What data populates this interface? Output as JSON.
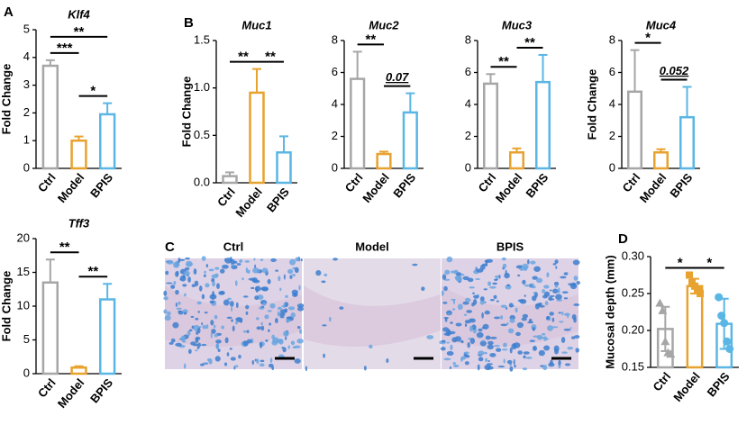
{
  "chart_data": [
    {
      "type": "bar",
      "panel": "A",
      "title": "Klf4",
      "ylabel": "Fold Change",
      "categories": [
        "Ctrl",
        "Model",
        "BPIS"
      ],
      "colors": [
        "#a6a6a6",
        "#e8a22f",
        "#5ab6e4"
      ],
      "values": [
        3.7,
        1.0,
        1.95
      ],
      "errors": [
        0.2,
        0.15,
        0.4
      ],
      "ylim": [
        0,
        5
      ],
      "yticks": [
        0,
        1,
        2,
        3,
        4,
        5
      ],
      "annotations": [
        {
          "label": "***",
          "between": [
            "Ctrl",
            "Model"
          ]
        },
        {
          "label": "*",
          "between": [
            "Model",
            "BPIS"
          ]
        },
        {
          "label": "**",
          "between": [
            "Ctrl",
            "BPIS"
          ]
        }
      ]
    },
    {
      "type": "bar",
      "title": "Tff3",
      "ylabel": "Fold Change",
      "categories": [
        "Ctrl",
        "Model",
        "BPIS"
      ],
      "colors": [
        "#a6a6a6",
        "#e8a22f",
        "#5ab6e4"
      ],
      "values": [
        13.5,
        0.9,
        11
      ],
      "errors": [
        3.4,
        0.2,
        2.3
      ],
      "ylim": [
        0,
        20
      ],
      "yticks": [
        0,
        5,
        10,
        15,
        20
      ],
      "annotations": [
        {
          "label": "**",
          "between": [
            "Ctrl",
            "Model"
          ]
        },
        {
          "label": "**",
          "between": [
            "Model",
            "BPIS"
          ]
        }
      ]
    },
    {
      "type": "bar",
      "panel": "B",
      "title": "Muc1",
      "ylabel": "Fold Change",
      "categories": [
        "Ctrl",
        "Model",
        "BPIS"
      ],
      "colors": [
        "#a6a6a6",
        "#e8a22f",
        "#5ab6e4"
      ],
      "values": [
        0.07,
        0.95,
        0.32
      ],
      "errors": [
        0.04,
        0.25,
        0.17
      ],
      "ylim": [
        0,
        1.5
      ],
      "yticks": [
        {
          "value": 0,
          "label": "0.0"
        },
        0.5,
        {
          "value": 1,
          "label": "1.0"
        },
        1.5
      ],
      "annotations": [
        {
          "label": "**",
          "between": [
            "Ctrl",
            "Model"
          ]
        },
        {
          "label": "**",
          "between": [
            "Model",
            "BPIS"
          ]
        }
      ]
    },
    {
      "type": "bar",
      "title": "Muc2",
      "categories": [
        "Ctrl",
        "Model",
        "BPIS"
      ],
      "colors": [
        "#a6a6a6",
        "#e8a22f",
        "#5ab6e4"
      ],
      "values": [
        5.6,
        0.9,
        3.5
      ],
      "errors": [
        1.7,
        0.15,
        1.2
      ],
      "ylim": [
        0,
        8
      ],
      "yticks": [
        0,
        2,
        4,
        6,
        8
      ],
      "annotations": [
        {
          "label": "**",
          "between": [
            "Ctrl",
            "Model"
          ]
        },
        {
          "label": "0.07",
          "between": [
            "Model",
            "BPIS"
          ]
        }
      ]
    },
    {
      "type": "bar",
      "title": "Muc3",
      "categories": [
        "Ctrl",
        "Model",
        "BPIS"
      ],
      "colors": [
        "#a6a6a6",
        "#e8a22f",
        "#5ab6e4"
      ],
      "values": [
        5.3,
        1.0,
        5.4
      ],
      "errors": [
        0.6,
        0.25,
        1.7
      ],
      "ylim": [
        0,
        8
      ],
      "yticks": [
        0,
        2,
        4,
        6,
        8
      ],
      "annotations": [
        {
          "label": "**",
          "between": [
            "Ctrl",
            "Model"
          ]
        },
        {
          "label": "**",
          "between": [
            "Model",
            "BPIS"
          ]
        }
      ]
    },
    {
      "type": "bar",
      "title": "Muc4",
      "ylabel": "Fold Change",
      "categories": [
        "Ctrl",
        "Model",
        "BPIS"
      ],
      "colors": [
        "#a6a6a6",
        "#e8a22f",
        "#5ab6e4"
      ],
      "values": [
        4.8,
        1.0,
        3.2
      ],
      "errors": [
        2.6,
        0.2,
        1.9
      ],
      "ylim": [
        0,
        8
      ],
      "yticks": [
        0,
        2,
        4,
        6,
        8
      ],
      "annotations": [
        {
          "label": "*",
          "between": [
            "Ctrl",
            "Model"
          ]
        },
        {
          "label": "0.052",
          "between": [
            "Model",
            "BPIS"
          ]
        }
      ]
    },
    {
      "type": "bar",
      "panel": "D",
      "ylabel": "Mucosal depth (mm)",
      "categories": [
        "Ctrl",
        "Model",
        "BPIS"
      ],
      "colors": [
        "#a6a6a6",
        "#e8a22f",
        "#5ab6e4"
      ],
      "values": [
        0.202,
        0.26,
        0.209
      ],
      "errors": [
        0.03,
        0.01,
        0.034
      ],
      "error_bars": "both",
      "markers": [
        "triangle",
        "square",
        "circle"
      ],
      "points": [
        [
          0.237,
          0.227,
          0.185,
          0.17,
          0.168
        ],
        [
          0.275,
          0.265,
          0.26,
          0.255,
          0.25
        ],
        [
          0.245,
          0.22,
          0.21,
          0.185,
          0.175
        ]
      ],
      "ylim": [
        0.15,
        0.3
      ],
      "yticks": [
        0.15,
        {
          "value": 0.2,
          "label": "0.20"
        },
        0.25,
        {
          "value": 0.3,
          "label": "0.30"
        }
      ],
      "annotations": [
        {
          "label": "*",
          "between": [
            "Ctrl",
            "Model"
          ]
        },
        {
          "label": "*",
          "between": [
            "Model",
            "BPIS"
          ]
        }
      ]
    }
  ],
  "panel_c": {
    "label": "C",
    "captions": [
      "Ctrl",
      "Model",
      "BPIS"
    ]
  }
}
